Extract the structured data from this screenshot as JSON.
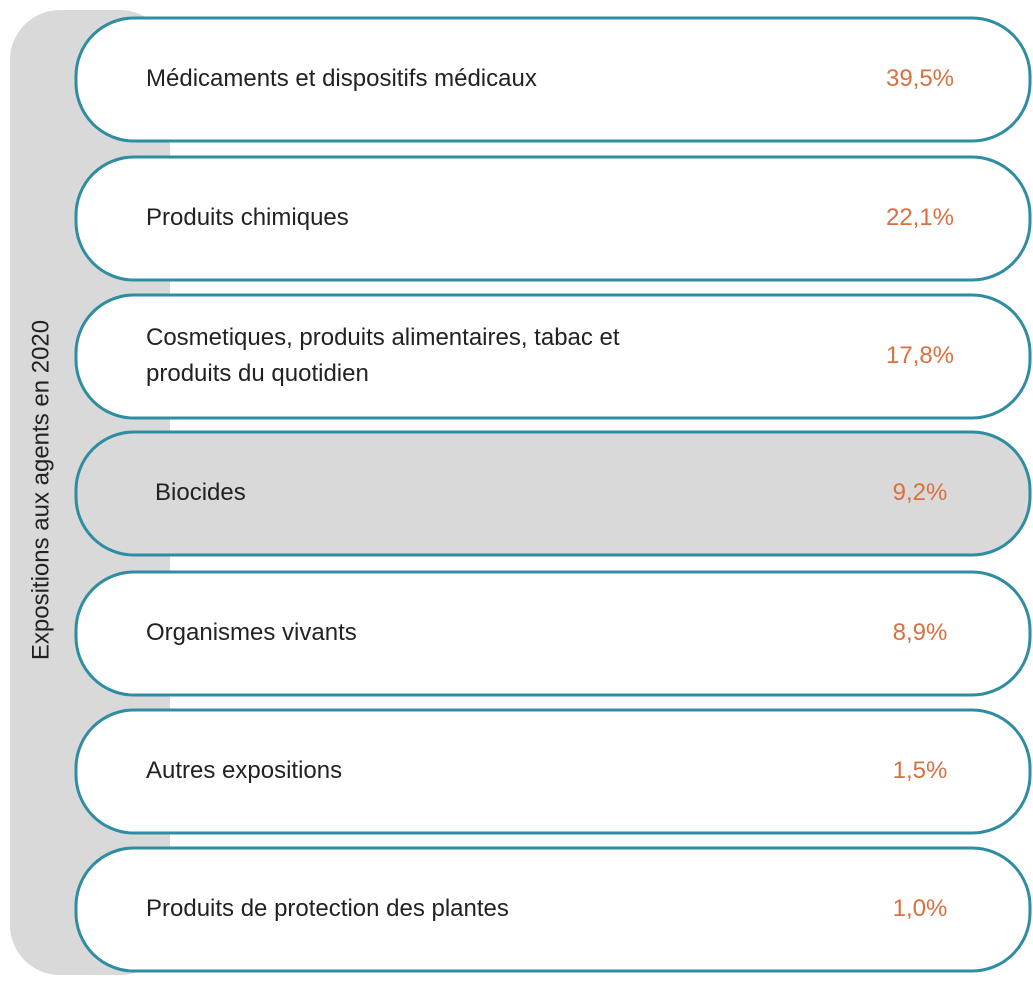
{
  "side_label": "Expositions aux agents en 2020",
  "items": [
    {
      "lines": [
        "Médicaments et dispositifs médicaux"
      ],
      "value": "39,5%"
    },
    {
      "lines": [
        "Produits chimiques"
      ],
      "value": "22,1%"
    },
    {
      "lines": [
        "Cosmetiques, produits alimentaires, tabac et",
        "produits du quotidien"
      ],
      "value": "17,8%"
    },
    {
      "lines": [
        "Biocides"
      ],
      "value": "9,2%",
      "highlighted": true
    },
    {
      "lines": [
        "Organismes vivants"
      ],
      "value": "8,9%"
    },
    {
      "lines": [
        "Autres expositions"
      ],
      "value": "1,5%"
    },
    {
      "lines": [
        "Produits de protection des plantes"
      ],
      "value": "1,0%"
    }
  ]
}
